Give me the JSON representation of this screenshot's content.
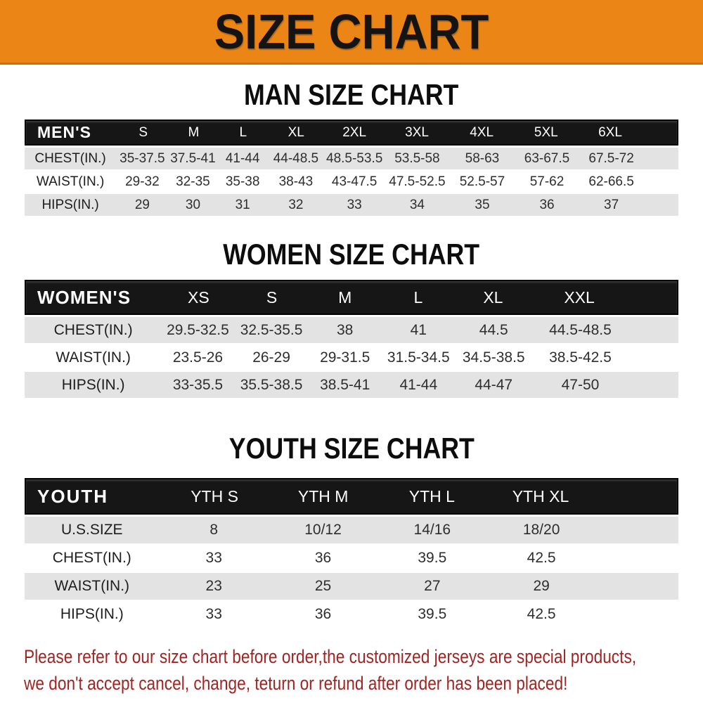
{
  "banner": {
    "title": "SIZE CHART",
    "bg_color": "#EB8516",
    "text_color": "#141414"
  },
  "sections": [
    {
      "heading": "MAN SIZE CHART",
      "label": "MEN'S",
      "sizes": [
        "S",
        "M",
        "L",
        "XL",
        "2XL",
        "3XL",
        "4XL",
        "5XL",
        "6XL"
      ],
      "rows": [
        {
          "label": "CHEST(IN.)",
          "values": [
            "35-37.5",
            "37.5-41",
            "41-44",
            "44-48.5",
            "48.5-53.5",
            "53.5-58",
            "58-63",
            "63-67.5",
            "67.5-72"
          ]
        },
        {
          "label": "WAIST(IN.)",
          "values": [
            "29-32",
            "32-35",
            "35-38",
            "38-43",
            "43-47.5",
            "47.5-52.5",
            "52.5-57",
            "57-62",
            "62-66.5"
          ]
        },
        {
          "label": "HIPS(IN.)",
          "values": [
            "29",
            "30",
            "31",
            "32",
            "33",
            "34",
            "35",
            "36",
            "37"
          ]
        }
      ]
    },
    {
      "heading": "WOMEN SIZE CHART",
      "label": "WOMEN'S",
      "sizes": [
        "XS",
        "S",
        "M",
        "L",
        "XL",
        "XXL"
      ],
      "rows": [
        {
          "label": "CHEST(IN.)",
          "values": [
            "29.5-32.5",
            "32.5-35.5",
            "38",
            "41",
            "44.5",
            "44.5-48.5"
          ]
        },
        {
          "label": "WAIST(IN.)",
          "values": [
            "23.5-26",
            "26-29",
            "29-31.5",
            "31.5-34.5",
            "34.5-38.5",
            "38.5-42.5"
          ]
        },
        {
          "label": "HIPS(IN.)",
          "values": [
            "33-35.5",
            "35.5-38.5",
            "38.5-41",
            "41-44",
            "44-47",
            "47-50"
          ]
        }
      ]
    },
    {
      "heading": "YOUTH SIZE CHART",
      "label": "YOUTH",
      "sizes": [
        "YTH S",
        "YTH M",
        "YTH L",
        "YTH XL"
      ],
      "rows": [
        {
          "label": "U.S.SIZE",
          "values": [
            "8",
            "10/12",
            "14/16",
            "18/20"
          ]
        },
        {
          "label": "CHEST(IN.)",
          "values": [
            "33",
            "36",
            "39.5",
            "42.5"
          ]
        },
        {
          "label": "WAIST(IN.)",
          "values": [
            "23",
            "25",
            "27",
            "29"
          ]
        },
        {
          "label": "HIPS(IN.)",
          "values": [
            "33",
            "36",
            "39.5",
            "42.5"
          ]
        }
      ]
    }
  ],
  "disclaimer": {
    "line1": "Please refer to our size chart before order,the customized jerseys are special products,",
    "line2": "we don't accept cancel, change, teturn or refund after order has been placed!",
    "color": "#A12422"
  },
  "colors": {
    "header_bar": "#161616",
    "header_text": "#FFFFFF",
    "row_alt": "#E3E3E3",
    "row_text": "#2E2E2E"
  }
}
